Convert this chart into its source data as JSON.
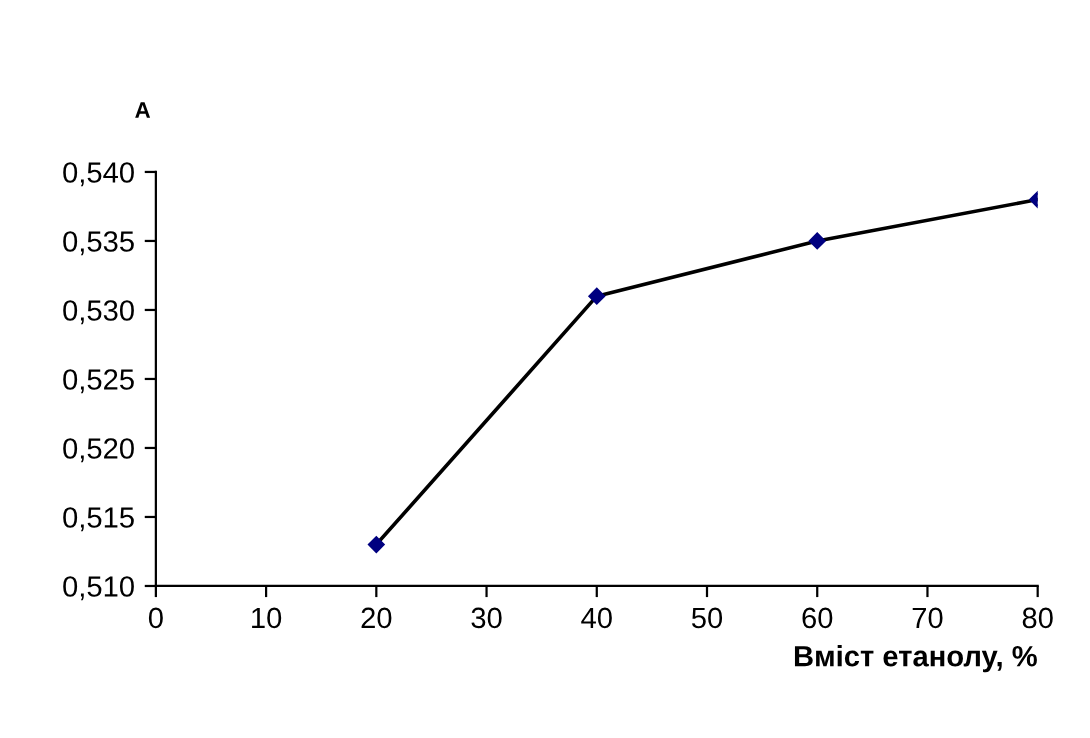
{
  "chart_data": {
    "type": "line",
    "xlabel": "Вміст етанолу, %",
    "ylabel": "A",
    "series": [
      {
        "color": "#000080",
        "x": [
          20,
          40,
          60,
          80
        ],
        "values": [
          0.513,
          0.531,
          0.535,
          0.538
        ]
      }
    ],
    "xlim": [
      0,
      80
    ],
    "xticks": [
      0,
      10,
      20,
      30,
      40,
      50,
      60,
      70,
      80
    ],
    "ylim": [
      0.51,
      0.54
    ],
    "yticks": [
      {
        "value": 0.51,
        "label": "0,510"
      },
      {
        "value": 0.515,
        "label": "0,515"
      },
      {
        "value": 0.52,
        "label": "0,520"
      },
      {
        "value": 0.525,
        "label": "0,525"
      },
      {
        "value": 0.53,
        "label": "0,530"
      },
      {
        "value": 0.535,
        "label": "0,535"
      },
      {
        "value": 0.54,
        "label": "0,540"
      }
    ],
    "marker": "diamond",
    "line_style": "solid",
    "grid": false,
    "legend": false
  }
}
